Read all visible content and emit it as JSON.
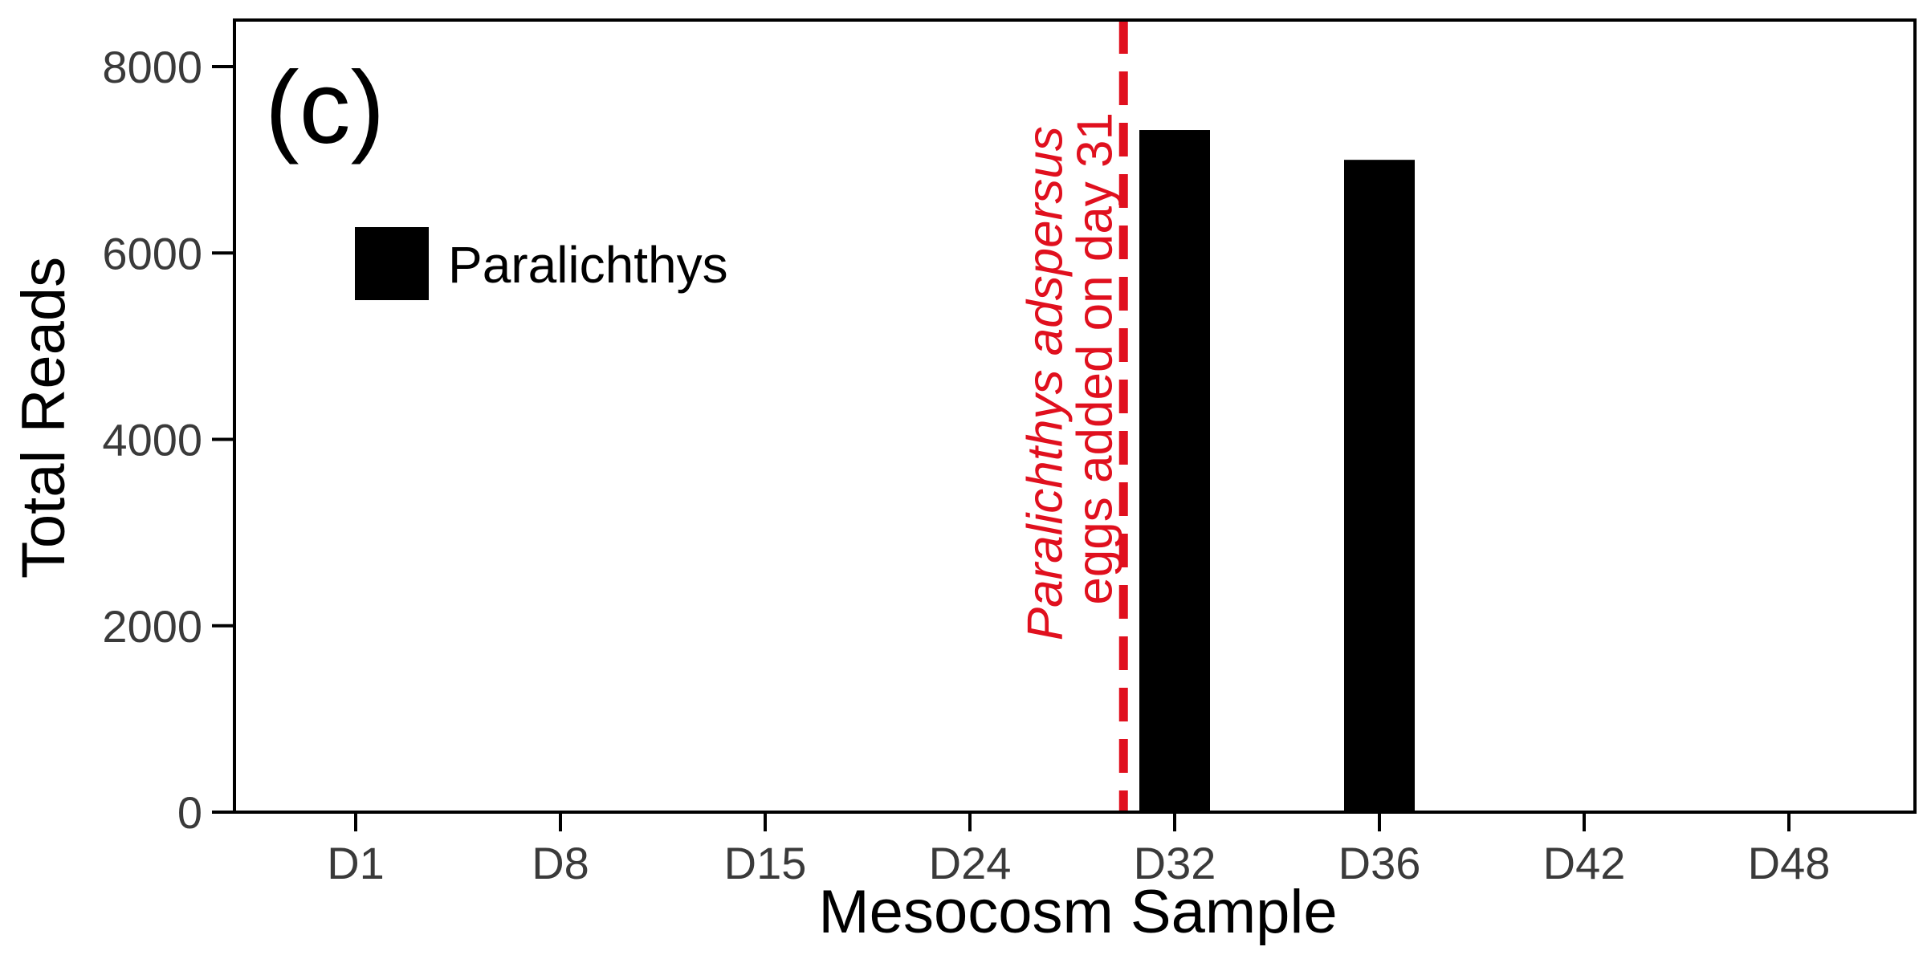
{
  "chart_data": {
    "type": "bar",
    "panel_label": "(c)",
    "title": "",
    "xlabel": "Mesocosm Sample",
    "ylabel": "Total Reads",
    "categories": [
      "D1",
      "D8",
      "D15",
      "D24",
      "D32",
      "D36",
      "D42",
      "D48"
    ],
    "series": [
      {
        "name": "Paralichthys",
        "values": [
          0,
          0,
          0,
          0,
          7320,
          7000,
          0,
          0
        ],
        "color": "#000000"
      }
    ],
    "ylim": [
      0,
      8500
    ],
    "yticks": [
      0,
      2000,
      4000,
      6000,
      8000
    ],
    "grid": false,
    "legend": {
      "placement": "top-left"
    },
    "annotation": {
      "line1": "Paralichthys adspersus",
      "line2": "eggs added on day 31",
      "color": "#e0101e",
      "line_style": "dashed",
      "between_categories": [
        "D24",
        "D32"
      ],
      "fraction_toward_next": 0.75
    }
  }
}
